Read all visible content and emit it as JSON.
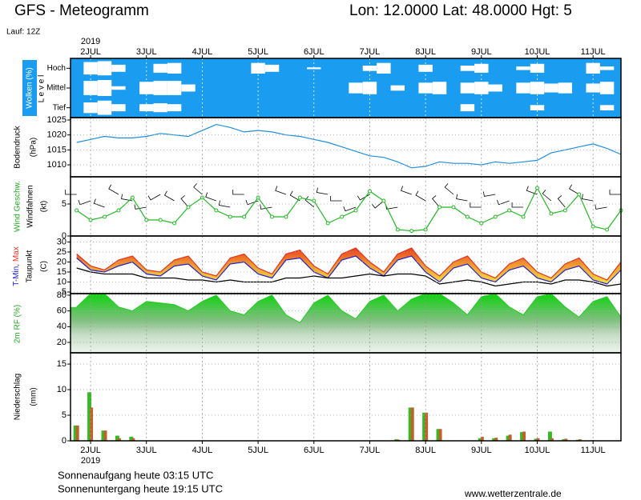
{
  "header": {
    "title": "GFS - Meteogramm",
    "location": "Lon: 12.0000 Lat: 48.0000 Hgt: 5",
    "run": "Lauf: 12Z"
  },
  "footer": {
    "sunrise": "Sonnenaufgang heute 03:15 UTC",
    "sunset": "Sonnenuntergang heute 19:15 UTC",
    "source": "www.wetterzentrale.de"
  },
  "chart_data": [
    {
      "type": "cloud",
      "y_label": "Wolken (%)",
      "level_label": "L e v e l",
      "year": "2019",
      "x": [
        1.75,
        2,
        2.25,
        2.5,
        2.75,
        3,
        3.25,
        3.5,
        3.75,
        4,
        4.25,
        4.5,
        4.75,
        5,
        5.25,
        5.5,
        5.75,
        6,
        6.25,
        6.5,
        6.75,
        7,
        7.25,
        7.5,
        7.75,
        8,
        8.25,
        8.5,
        8.75,
        9,
        9.25,
        9.5,
        9.75,
        10,
        10.25,
        10.5,
        10.75,
        11,
        11.25,
        11.5
      ],
      "xlim": [
        1.64,
        11.5
      ],
      "xticks": [
        {
          "value": 2,
          "label": "2JUL"
        },
        {
          "value": 3,
          "label": "3JUL"
        },
        {
          "value": 4,
          "label": "4JUL"
        },
        {
          "value": 5,
          "label": "5JUL"
        },
        {
          "value": 6,
          "label": "6JUL"
        },
        {
          "value": 7,
          "label": "7JUL"
        },
        {
          "value": 8,
          "label": "8JUL"
        },
        {
          "value": 9,
          "label": "9JUL"
        },
        {
          "value": 10,
          "label": "10JUL"
        },
        {
          "value": 11,
          "label": "11JUL"
        }
      ],
      "series": [
        {
          "name": "Hoch",
          "color": "#1a9cf0",
          "values": [
            100,
            30,
            20,
            60,
            100,
            100,
            50,
            40,
            100,
            100,
            100,
            100,
            100,
            40,
            60,
            100,
            100,
            90,
            100,
            100,
            100,
            70,
            40,
            100,
            100,
            60,
            100,
            100,
            70,
            50,
            100,
            100,
            80,
            50,
            100,
            100,
            100,
            40,
            80,
            100
          ]
        },
        {
          "name": "Mittel",
          "color": "#1a9cf0",
          "values": [
            100,
            20,
            10,
            80,
            100,
            30,
            20,
            20,
            60,
            100,
            100,
            100,
            100,
            100,
            100,
            100,
            100,
            100,
            100,
            100,
            40,
            30,
            100,
            70,
            100,
            40,
            30,
            100,
            40,
            30,
            60,
            100,
            40,
            30,
            50,
            40,
            100,
            50,
            30,
            100
          ]
        },
        {
          "name": "Tief",
          "color": "#1a9cf0",
          "values": [
            100,
            40,
            20,
            60,
            100,
            60,
            50,
            60,
            100,
            100,
            100,
            100,
            100,
            100,
            100,
            100,
            100,
            100,
            100,
            100,
            100,
            100,
            100,
            100,
            100,
            100,
            100,
            100,
            60,
            100,
            100,
            100,
            100,
            70,
            100,
            100,
            100,
            100,
            70,
            100
          ]
        }
      ]
    },
    {
      "type": "line",
      "y_label": "Bodendruck",
      "y_unit": "(hPa)",
      "x": [
        1.75,
        2,
        2.25,
        2.5,
        2.75,
        3,
        3.25,
        3.5,
        3.75,
        4,
        4.25,
        4.5,
        4.75,
        5,
        5.25,
        5.5,
        5.75,
        6,
        6.25,
        6.5,
        6.75,
        7,
        7.25,
        7.5,
        7.75,
        8,
        8.25,
        8.5,
        8.75,
        9,
        9.25,
        9.5,
        9.75,
        10,
        10.25,
        10.5,
        10.75,
        11,
        11.25,
        11.5
      ],
      "xlim": [
        1.64,
        11.5
      ],
      "ylim": [
        1006,
        1025.8
      ],
      "yticks": [
        1010,
        1015,
        1020,
        1025
      ],
      "series": [
        {
          "color": "#1e8fe0",
          "values": [
            1017.5,
            1018.5,
            1019.5,
            1019,
            1019,
            1019.5,
            1020.5,
            1020,
            1019.5,
            1021.5,
            1023.5,
            1022.5,
            1021,
            1021.5,
            1021,
            1020,
            1019.5,
            1018.5,
            1017.5,
            1016,
            1014.5,
            1013,
            1012.5,
            1011,
            1009,
            1009.5,
            1011,
            1010.5,
            1010.5,
            1010,
            1011,
            1010.5,
            1011,
            1011.5,
            1014,
            1015,
            1016,
            1017,
            1015.5,
            1013.5
          ]
        }
      ]
    },
    {
      "type": "wind",
      "y_label": "Wind Geschw.",
      "y_label2": "Windfahnen",
      "y_unit": "(kt)",
      "x": [
        1.75,
        2,
        2.25,
        2.5,
        2.75,
        3,
        3.25,
        3.5,
        3.75,
        4,
        4.25,
        4.5,
        4.75,
        5,
        5.25,
        5.5,
        5.75,
        6,
        6.25,
        6.5,
        6.75,
        7,
        7.25,
        7.5,
        7.75,
        8,
        8.25,
        8.5,
        8.75,
        9,
        9.25,
        9.5,
        9.75,
        10,
        10.25,
        10.5,
        10.75,
        11,
        11.25,
        11.5
      ],
      "xlim": [
        1.64,
        11.5
      ],
      "ylim": [
        0,
        9.25
      ],
      "yticks": [
        0,
        5
      ],
      "series": [
        {
          "color": "#22bb22",
          "values": [
            4,
            2.5,
            3,
            4,
            6,
            2.5,
            2.5,
            2,
            4.5,
            6,
            4,
            3,
            3,
            6,
            3,
            3,
            6,
            5.5,
            2,
            3,
            4,
            7,
            5.5,
            1,
            0.8,
            1,
            4.5,
            4.5,
            3,
            2,
            3,
            4,
            3,
            7.5,
            3.5,
            4,
            6.5,
            1.5,
            1,
            4
          ]
        }
      ],
      "direction": [
        270,
        250,
        290,
        300,
        280,
        260,
        240,
        300,
        320,
        310,
        290,
        280,
        270,
        250,
        260,
        290,
        300,
        310,
        280,
        270,
        250,
        240,
        230,
        260,
        290,
        300,
        320,
        310,
        280,
        270,
        260,
        250,
        270,
        290,
        310,
        320,
        300,
        280,
        260,
        270
      ]
    },
    {
      "type": "temperature",
      "y_unit": "(C)",
      "x": [
        1.75,
        2,
        2.25,
        2.5,
        2.75,
        3,
        3.25,
        3.5,
        3.75,
        4,
        4.25,
        4.5,
        4.75,
        5,
        5.25,
        5.5,
        5.75,
        6,
        6.25,
        6.5,
        6.75,
        7,
        7.25,
        7.5,
        7.75,
        8,
        8.25,
        8.5,
        8.75,
        9,
        9.25,
        9.5,
        9.75,
        10,
        10.25,
        10.5,
        10.75,
        11,
        11.25,
        11.5
      ],
      "xlim": [
        1.64,
        11.5
      ],
      "ylim": [
        4.2,
        33
      ],
      "yticks": [
        5,
        10,
        15,
        20,
        25,
        30
      ],
      "series": [
        {
          "name": "Max",
          "color": "#e83020",
          "values": [
            24,
            18,
            16,
            21,
            23,
            16,
            15,
            21,
            23,
            15,
            13,
            22,
            24,
            17,
            14,
            24,
            26,
            18,
            14,
            24,
            27,
            20,
            15,
            24,
            27,
            18,
            13,
            20,
            23,
            15,
            12,
            19,
            22,
            15,
            12,
            19,
            22,
            14,
            11,
            20
          ]
        },
        {
          "name": "T-Min,",
          "color": "#2020d0",
          "values": [
            22,
            16,
            15,
            18,
            20,
            14,
            13,
            18,
            19,
            13,
            11,
            19,
            20,
            14,
            12,
            21,
            22,
            15,
            12,
            21,
            23,
            17,
            13,
            21,
            23,
            15,
            10,
            17,
            19,
            12,
            10,
            16,
            18,
            12,
            10,
            16,
            18,
            11,
            9,
            16
          ]
        },
        {
          "name": "Taupunkt",
          "color": "#000000",
          "values": [
            17,
            15,
            14,
            14,
            14,
            12,
            12,
            12,
            11,
            11,
            10,
            11,
            10,
            10,
            10,
            12,
            12,
            13,
            12,
            12,
            13,
            14,
            13,
            14,
            14,
            13,
            9,
            10,
            11,
            10,
            8,
            9,
            10,
            10,
            9,
            11,
            11,
            10,
            8,
            9
          ]
        }
      ]
    },
    {
      "type": "area",
      "y_label": "2m RF (%)",
      "color": "#22cc22",
      "x": [
        1.75,
        2,
        2.25,
        2.5,
        2.75,
        3,
        3.25,
        3.5,
        3.75,
        4,
        4.25,
        4.5,
        4.75,
        5,
        5.25,
        5.5,
        5.75,
        6,
        6.25,
        6.5,
        6.75,
        7,
        7.25,
        7.5,
        7.75,
        8,
        8.25,
        8.5,
        8.75,
        9,
        9.25,
        9.5,
        9.75,
        10,
        10.25,
        10.5,
        10.75,
        11,
        11.25,
        11.5
      ],
      "xlim": [
        1.64,
        11.5
      ],
      "ylim": [
        6.8,
        82
      ],
      "yticks": [
        20,
        40,
        60,
        80
      ],
      "values": [
        65,
        82,
        82,
        65,
        60,
        72,
        70,
        68,
        60,
        72,
        80,
        60,
        55,
        72,
        80,
        55,
        45,
        70,
        80,
        60,
        50,
        72,
        80,
        60,
        75,
        82,
        82,
        70,
        55,
        78,
        82,
        65,
        55,
        78,
        82,
        65,
        52,
        72,
        78,
        52
      ]
    },
    {
      "type": "bar",
      "y_label": "Niederschlag",
      "y_unit": "(mm)",
      "year": "2019",
      "x": [
        1.75,
        2,
        2.25,
        2.5,
        2.75,
        3,
        3.25,
        3.5,
        3.75,
        4,
        4.25,
        4.5,
        4.75,
        5,
        5.25,
        5.5,
        5.75,
        6,
        6.25,
        6.5,
        6.75,
        7,
        7.25,
        7.5,
        7.75,
        8,
        8.25,
        8.5,
        8.75,
        9,
        9.25,
        9.5,
        9.75,
        10,
        10.25,
        10.5,
        10.75,
        11,
        11.25,
        11.5
      ],
      "xlim": [
        1.64,
        11.5
      ],
      "ylim": [
        0,
        17.2
      ],
      "yticks": [
        0,
        5,
        10,
        15
      ],
      "xticks": [
        {
          "value": 2,
          "label": "2JUL"
        },
        {
          "value": 3,
          "label": "3JUL"
        },
        {
          "value": 4,
          "label": "4JUL"
        },
        {
          "value": 5,
          "label": "5JUL"
        },
        {
          "value": 6,
          "label": "6JUL"
        },
        {
          "value": 7,
          "label": "7JUL"
        },
        {
          "value": 8,
          "label": "8JUL"
        },
        {
          "value": 9,
          "label": "9JUL"
        },
        {
          "value": 10,
          "label": "10JUL"
        },
        {
          "value": 11,
          "label": "11JUL"
        }
      ],
      "series": [
        {
          "color": "#33bb22",
          "values": [
            3,
            9.5,
            2,
            1,
            0.8,
            0,
            0,
            0,
            0,
            0,
            0,
            0,
            0,
            0,
            0,
            0,
            0,
            0,
            0,
            0,
            0,
            0,
            0,
            0.3,
            6.5,
            5.5,
            2.3,
            0,
            0,
            0.5,
            0.5,
            1,
            1.7,
            0.4,
            1.8,
            0.3,
            0.2,
            0.1,
            0,
            0
          ]
        },
        {
          "color": "#c0602a",
          "values": [
            3,
            6.5,
            2,
            0.5,
            0.5,
            0,
            0,
            0,
            0,
            0,
            0,
            0,
            0,
            0,
            0,
            0,
            0,
            0,
            0,
            0,
            0,
            0,
            0,
            0.2,
            6.5,
            5.5,
            2.3,
            0,
            0,
            0.8,
            0.6,
            1.2,
            1.8,
            0.5,
            0.5,
            0.4,
            0.3,
            0.1,
            0,
            0
          ]
        }
      ]
    }
  ]
}
